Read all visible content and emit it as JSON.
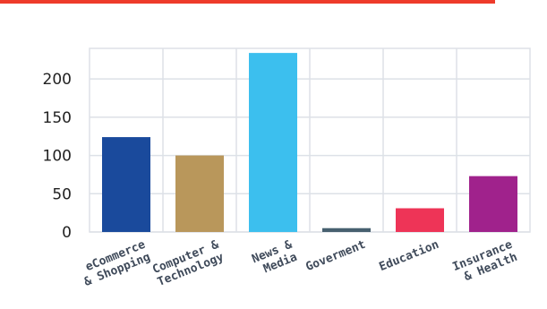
{
  "accent_color": "#ee3b2b",
  "chart_data": {
    "type": "bar",
    "title": "",
    "xlabel": "",
    "ylabel": "",
    "ylim": [
      0,
      240
    ],
    "yticks": [
      0,
      50,
      100,
      150,
      200
    ],
    "grid": true,
    "legend": "none",
    "categories": [
      [
        "eCommerce",
        "& Shopping"
      ],
      [
        "Computer &",
        "Technology"
      ],
      [
        "News &",
        "Media"
      ],
      [
        "Goverment"
      ],
      [
        "Education"
      ],
      [
        "Insurance",
        "& Health"
      ]
    ],
    "values": [
      124,
      100,
      234,
      5,
      31,
      73
    ],
    "colors": [
      "#1a4a9c",
      "#b9975b",
      "#3cbfee",
      "#47606f",
      "#ee3457",
      "#a0228c"
    ]
  }
}
